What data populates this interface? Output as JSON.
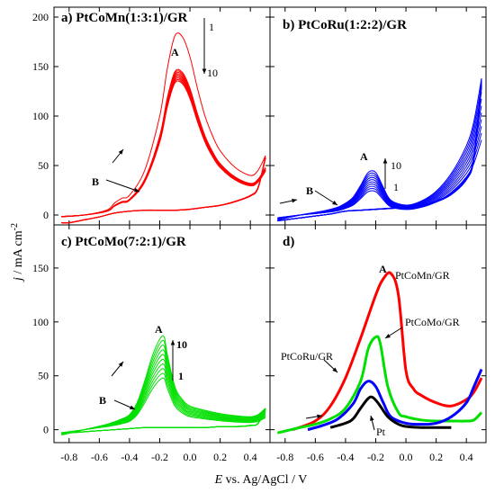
{
  "figure": {
    "ylabel": "j / mA cm-2",
    "ylabel_main": "j",
    "ylabel_unit": " / mA cm",
    "ylabel_sup": "-2",
    "xlabel_e": "E",
    "xlabel_rest": " vs. Ag/AgCl / V",
    "xlim": [
      -0.9,
      0.53
    ],
    "x_ticks": [
      "-0.8",
      "-0.6",
      "-0.4",
      "-0.2",
      "0.0",
      "0.2",
      "0.4"
    ],
    "top_y_ticks": [
      "0",
      "50",
      "100",
      "150",
      "200"
    ],
    "bottom_y_ticks": [
      "0",
      "50",
      "100",
      "150"
    ]
  },
  "chart_data": [
    {
      "id": "a",
      "type": "line",
      "title": "a) PtCoMn(1:3:1)/GR",
      "xlim": [
        -0.9,
        0.53
      ],
      "ylim": [
        -10,
        210
      ],
      "color": "#ff0000",
      "cycles": 10,
      "series": [
        {
          "x": [
            -0.85,
            -0.7,
            -0.55,
            -0.5,
            -0.45,
            -0.4,
            -0.3,
            -0.2,
            -0.15,
            -0.1,
            -0.05,
            0.0,
            0.05,
            0.1,
            0.15,
            0.2,
            0.3,
            0.4,
            0.45,
            0.5
          ],
          "y": [
            -2,
            0,
            5,
            12,
            17,
            20,
            45,
            100,
            148,
            181,
            180,
            160,
            128,
            100,
            80,
            65,
            48,
            40,
            45,
            60
          ]
        },
        {
          "x": [
            0.5,
            0.45,
            0.4,
            0.3,
            0.2,
            0.1,
            0.0,
            -0.1,
            -0.2,
            -0.3,
            -0.4,
            -0.5,
            -0.6,
            -0.7,
            -0.8,
            -0.85
          ],
          "y": [
            60,
            28,
            20,
            14,
            10,
            8,
            6,
            5,
            5,
            5,
            4,
            2,
            -2,
            -5,
            -8,
            -8
          ]
        }
      ],
      "annotations": [
        "A",
        "B",
        "1",
        "10"
      ]
    },
    {
      "id": "b",
      "type": "line",
      "title": "b) PtCoRu(1:2:2)/GR",
      "xlim": [
        -0.9,
        0.53
      ],
      "ylim": [
        -10,
        210
      ],
      "color": "#0000ff",
      "cycles": 10,
      "series": [
        {
          "x": [
            -0.85,
            -0.7,
            -0.55,
            -0.45,
            -0.4,
            -0.35,
            -0.3,
            -0.25,
            -0.2,
            -0.15,
            -0.1,
            0.0,
            0.1,
            0.2,
            0.3,
            0.4,
            0.45,
            0.5
          ],
          "y": [
            -5,
            0,
            4,
            8,
            12,
            18,
            30,
            43,
            43,
            28,
            15,
            10,
            14,
            24,
            42,
            70,
            95,
            138
          ]
        },
        {
          "x": [
            0.5,
            0.45,
            0.4,
            0.3,
            0.2,
            0.1,
            0.0,
            -0.1,
            -0.2,
            -0.3,
            -0.4,
            -0.5,
            -0.6,
            -0.7,
            -0.8,
            -0.85
          ],
          "y": [
            138,
            60,
            38,
            22,
            14,
            10,
            8,
            7,
            6,
            5,
            4,
            1,
            -1,
            -3,
            -5,
            -6
          ]
        }
      ],
      "annotations": [
        "A",
        "B",
        "1",
        "10"
      ]
    },
    {
      "id": "c",
      "type": "line",
      "title": "c) PtCoMo(7:2:1)/GR",
      "xlim": [
        -0.9,
        0.53
      ],
      "ylim": [
        -12,
        190
      ],
      "color": "#00e000",
      "cycles": 10,
      "series": [
        {
          "x": [
            -0.85,
            -0.7,
            -0.55,
            -0.45,
            -0.4,
            -0.35,
            -0.3,
            -0.25,
            -0.2,
            -0.17,
            -0.15,
            -0.1,
            -0.05,
            0.0,
            0.1,
            0.2,
            0.3,
            0.4,
            0.45,
            0.5
          ],
          "y": [
            -5,
            0,
            5,
            10,
            14,
            25,
            45,
            68,
            84,
            86,
            70,
            40,
            28,
            22,
            18,
            15,
            13,
            12,
            14,
            20
          ]
        },
        {
          "x": [
            0.5,
            0.45,
            0.4,
            0.3,
            0.2,
            0.1,
            0.0,
            -0.1,
            -0.2,
            -0.3,
            -0.4,
            -0.5,
            -0.6,
            -0.7,
            -0.8,
            -0.85
          ],
          "y": [
            20,
            6,
            4,
            3,
            3,
            2,
            2,
            2,
            2,
            2,
            1,
            0,
            -1,
            -2,
            -3,
            -3
          ]
        }
      ],
      "annotations": [
        "A",
        "B",
        "1",
        "10"
      ]
    },
    {
      "id": "d",
      "type": "line",
      "title": "d)",
      "xlim": [
        -0.9,
        0.53
      ],
      "ylim": [
        -12,
        190
      ],
      "series": [
        {
          "name": "PtCoMn/GR",
          "color": "#ff0000",
          "x": [
            -0.75,
            -0.6,
            -0.5,
            -0.4,
            -0.3,
            -0.2,
            -0.15,
            -0.1,
            -0.05,
            0.0,
            0.05,
            0.1,
            0.2,
            0.3,
            0.4,
            0.45,
            0.5
          ],
          "y": [
            0,
            8,
            22,
            48,
            85,
            125,
            140,
            145,
            125,
            55,
            38,
            32,
            25,
            22,
            28,
            35,
            48
          ]
        },
        {
          "name": "PtCoMo/GR",
          "color": "#00e000",
          "x": [
            -0.85,
            -0.7,
            -0.6,
            -0.5,
            -0.4,
            -0.3,
            -0.25,
            -0.2,
            -0.17,
            -0.12,
            -0.05,
            0.0,
            0.1,
            0.2,
            0.3,
            0.4,
            0.45,
            0.5
          ],
          "y": [
            -3,
            2,
            5,
            10,
            20,
            45,
            75,
            86,
            80,
            40,
            16,
            12,
            9,
            8,
            8,
            8,
            9,
            16
          ]
        },
        {
          "name": "PtCoRu/GR",
          "color": "#0000ff",
          "x": [
            -0.65,
            -0.55,
            -0.45,
            -0.35,
            -0.3,
            -0.25,
            -0.2,
            -0.15,
            -0.1,
            0.0,
            0.1,
            0.2,
            0.3,
            0.4,
            0.45,
            0.5
          ],
          "y": [
            0,
            4,
            10,
            24,
            38,
            45,
            40,
            25,
            12,
            6,
            5,
            6,
            12,
            25,
            40,
            56
          ]
        },
        {
          "name": "Pt",
          "color": "#000000",
          "x": [
            -0.5,
            -0.4,
            -0.35,
            -0.3,
            -0.25,
            -0.22,
            -0.18,
            -0.12,
            -0.05,
            0.0,
            0.1,
            0.2,
            0.3
          ],
          "y": [
            2,
            6,
            10,
            20,
            29,
            30,
            24,
            12,
            5,
            3,
            2,
            2,
            2
          ]
        }
      ],
      "annotations": [
        "A",
        "PtCoMn/GR",
        "PtCoMo/GR",
        "PtCoRu/GR",
        "Pt"
      ]
    }
  ]
}
